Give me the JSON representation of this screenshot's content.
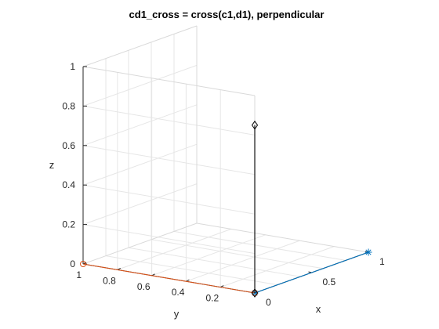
{
  "chart_data": {
    "type": "line3d",
    "title": "cd1_cross = cross(c1,d1), perpendicular",
    "xlabel": "x",
    "ylabel": "y",
    "zlabel": "z",
    "xlim": [
      0,
      1
    ],
    "ylim": [
      0,
      1
    ],
    "zlim": [
      0,
      1
    ],
    "grid": true,
    "box": true,
    "x_ticks": [
      {
        "v": 0,
        "label": "0"
      },
      {
        "v": 0.5,
        "label": "0.5"
      },
      {
        "v": 1,
        "label": "1"
      }
    ],
    "y_ticks": [
      {
        "v": 0.2,
        "label": "0.2"
      },
      {
        "v": 0.4,
        "label": "0.4"
      },
      {
        "v": 0.6,
        "label": "0.6"
      },
      {
        "v": 0.8,
        "label": "0.8"
      },
      {
        "v": 1,
        "label": "1"
      }
    ],
    "z_ticks": [
      {
        "v": 0,
        "label": "0"
      },
      {
        "v": 0.2,
        "label": "0.2"
      },
      {
        "v": 0.4,
        "label": "0.4"
      },
      {
        "v": 0.6,
        "label": "0.6"
      },
      {
        "v": 0.8,
        "label": "0.8"
      },
      {
        "v": 1,
        "label": "1"
      }
    ],
    "series": [
      {
        "start": [
          0,
          0,
          0
        ],
        "end": [
          1,
          0,
          0
        ],
        "color": "#0072bd",
        "marker": "asterisk"
      },
      {
        "start": [
          0,
          0,
          0
        ],
        "end": [
          0,
          1,
          0
        ],
        "color": "#d95319",
        "marker": "circle"
      },
      {
        "start": [
          0,
          0,
          0
        ],
        "end": [
          0,
          0,
          0.85
        ],
        "color": "#000000",
        "marker": "diamond"
      }
    ]
  }
}
